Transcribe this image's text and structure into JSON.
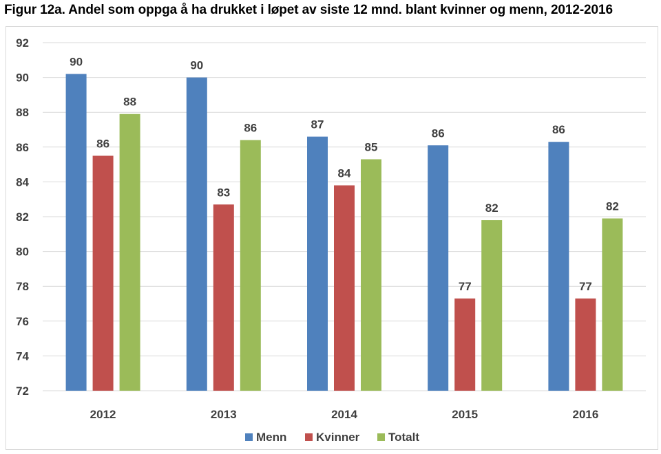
{
  "chart_data": {
    "type": "bar",
    "title": "Figur 12a. Andel som oppga å ha drukket i løpet av siste 12 mnd. blant kvinner og menn, 2012-2016",
    "xlabel": "",
    "ylabel": "",
    "categories": [
      "2012",
      "2013",
      "2014",
      "2015",
      "2016"
    ],
    "ylim": [
      72,
      92
    ],
    "yticks": [
      72,
      74,
      76,
      78,
      80,
      82,
      84,
      86,
      88,
      90,
      92
    ],
    "grid": true,
    "legend_position": "bottom",
    "series": [
      {
        "name": "Menn",
        "color": "#4f81bd",
        "values": [
          90.2,
          90.0,
          86.6,
          86.1,
          86.3
        ],
        "labels": [
          "90",
          "90",
          "87",
          "86",
          "86"
        ]
      },
      {
        "name": "Kvinner",
        "color": "#c0504d",
        "values": [
          85.5,
          82.7,
          83.8,
          77.3,
          77.3
        ],
        "labels": [
          "86",
          "83",
          "84",
          "77",
          "77"
        ]
      },
      {
        "name": "Totalt",
        "color": "#9bbb59",
        "values": [
          87.9,
          86.4,
          85.3,
          81.8,
          81.9
        ],
        "labels": [
          "88",
          "86",
          "85",
          "82",
          "82"
        ]
      }
    ]
  }
}
